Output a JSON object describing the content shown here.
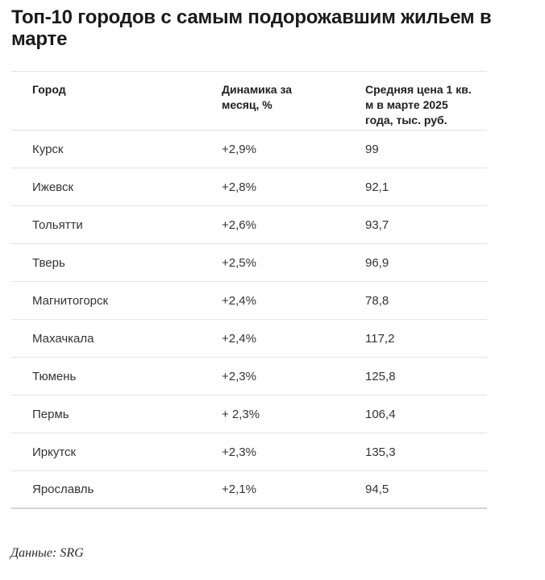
{
  "page_title": "Топ-10 городов с самым подорожавшим жильем в марте",
  "chart_data": {
    "type": "table",
    "title": "Топ-10 городов с самым подорожавшим жильем в марте",
    "columns": [
      "Город",
      "Динамика за месяц, %",
      "Средняя цена 1 кв. м в марте 2025 года, тыс. руб."
    ],
    "rows": [
      [
        "Курск",
        "+2,9%",
        "99"
      ],
      [
        "Ижевск",
        "+2,8%",
        "92,1"
      ],
      [
        "Тольятти",
        "+2,6%",
        "93,7"
      ],
      [
        "Тверь",
        "+2,5%",
        "96,9"
      ],
      [
        "Магнитогорск",
        "+2,4%",
        "78,8"
      ],
      [
        "Махачкала",
        "+2,4%",
        "117,2"
      ],
      [
        "Тюмень",
        "+2,3%",
        "125,8"
      ],
      [
        "Пермь",
        "+ 2,3%",
        "106,4"
      ],
      [
        "Иркутск",
        "+2,3%",
        "135,3"
      ],
      [
        "Ярославль",
        "+2,1%",
        "94,5"
      ]
    ],
    "rows_numeric": [
      {
        "city": "Курск",
        "monthly_change_pct": 2.9,
        "avg_price_thousand_rub": 99
      },
      {
        "city": "Ижевск",
        "monthly_change_pct": 2.8,
        "avg_price_thousand_rub": 92.1
      },
      {
        "city": "Тольятти",
        "monthly_change_pct": 2.6,
        "avg_price_thousand_rub": 93.7
      },
      {
        "city": "Тверь",
        "monthly_change_pct": 2.5,
        "avg_price_thousand_rub": 96.9
      },
      {
        "city": "Магнитогорск",
        "monthly_change_pct": 2.4,
        "avg_price_thousand_rub": 78.8
      },
      {
        "city": "Махачкала",
        "monthly_change_pct": 2.4,
        "avg_price_thousand_rub": 117.2
      },
      {
        "city": "Тюмень",
        "monthly_change_pct": 2.3,
        "avg_price_thousand_rub": 125.8
      },
      {
        "city": "Пермь",
        "monthly_change_pct": 2.3,
        "avg_price_thousand_rub": 106.4
      },
      {
        "city": "Иркутск",
        "monthly_change_pct": 2.3,
        "avg_price_thousand_rub": 135.3
      },
      {
        "city": "Ярославль",
        "monthly_change_pct": 2.1,
        "avg_price_thousand_rub": 94.5
      }
    ],
    "source": "Данные: SRG"
  },
  "colors": {
    "background": "#ffffff",
    "title_text": "#1b1b1b",
    "header_text": "#1f1f1f",
    "body_text": "#333333",
    "row_separator": "#e4e4e4",
    "bottom_rule": "#d2d2d2"
  }
}
